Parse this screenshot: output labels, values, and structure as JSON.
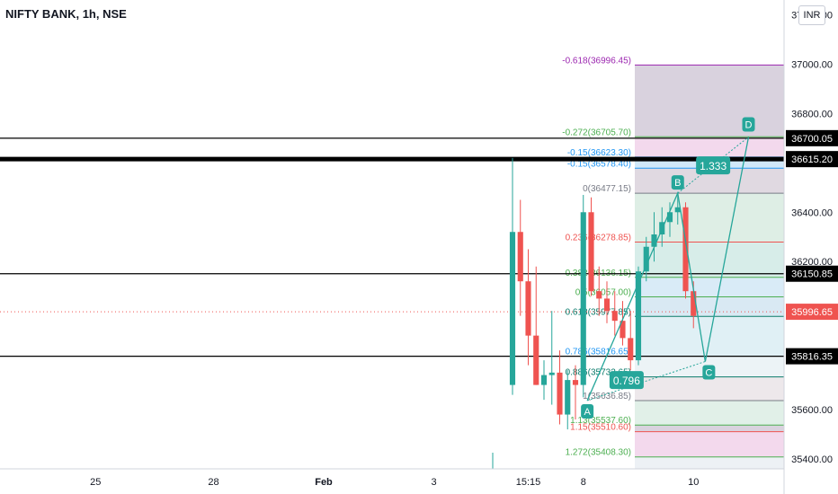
{
  "header": {
    "title": "NIFTY BANK, 1h, NSE",
    "currency": "INR"
  },
  "colors": {
    "up": "#26a69a",
    "down": "#ef5350",
    "fib_purple": "#9c27b0",
    "fib_red": "#ef5350",
    "fib_green": "#4caf50",
    "fib_blue": "#2196f3",
    "fib_gray": "#787b86",
    "pattern": "#26a69a",
    "hline": "#000000",
    "last_price": "#ef5350"
  },
  "chart_data": {
    "type": "candlestick",
    "ylim": [
      35360,
      37260
    ],
    "y_ticks": [
      {
        "value": 37200,
        "label": "37200.00"
      },
      {
        "value": 37000,
        "label": "37000.00"
      },
      {
        "value": 36800,
        "label": "36800.00"
      },
      {
        "value": 36400,
        "label": "36400.00"
      },
      {
        "value": 36200,
        "label": "36200.00"
      },
      {
        "value": 35600,
        "label": "35600.00"
      },
      {
        "value": 35400,
        "label": "35400.00"
      }
    ],
    "x_ticks": [
      {
        "bar": -53,
        "label": "25"
      },
      {
        "bar": -38,
        "label": "28"
      },
      {
        "bar": -24,
        "label": "Feb"
      },
      {
        "bar": -10,
        "label": "3"
      },
      {
        "bar": 2,
        "label": "15:15"
      },
      {
        "bar": 9,
        "label": "8"
      },
      {
        "bar": 23,
        "label": "10"
      }
    ],
    "candles": [
      {
        "o": 35700,
        "h": 36620,
        "l": 35660,
        "c": 36320
      },
      {
        "o": 36320,
        "h": 36450,
        "l": 35980,
        "c": 36120
      },
      {
        "o": 36120,
        "h": 36250,
        "l": 35780,
        "c": 35900
      },
      {
        "o": 35900,
        "h": 36180,
        "l": 35700,
        "c": 35700
      },
      {
        "o": 35700,
        "h": 35800,
        "l": 35640,
        "c": 35740
      },
      {
        "o": 35740,
        "h": 36000,
        "l": 35620,
        "c": 35750
      },
      {
        "o": 35750,
        "h": 35840,
        "l": 35540,
        "c": 35580
      },
      {
        "o": 35580,
        "h": 35760,
        "l": 35520,
        "c": 35720
      },
      {
        "o": 35720,
        "h": 35780,
        "l": 35560,
        "c": 35700
      },
      {
        "o": 35700,
        "h": 36470,
        "l": 35650,
        "c": 36400
      },
      {
        "o": 36400,
        "h": 36460,
        "l": 36060,
        "c": 36080
      },
      {
        "o": 36080,
        "h": 36180,
        "l": 35980,
        "c": 36050
      },
      {
        "o": 36050,
        "h": 36120,
        "l": 35950,
        "c": 36000
      },
      {
        "o": 36000,
        "h": 36080,
        "l": 35900,
        "c": 35960
      },
      {
        "o": 35960,
        "h": 36040,
        "l": 35860,
        "c": 35890
      },
      {
        "o": 35890,
        "h": 36000,
        "l": 35760,
        "c": 35800
      },
      {
        "o": 35800,
        "h": 36180,
        "l": 35780,
        "c": 36160
      },
      {
        "o": 36160,
        "h": 36300,
        "l": 36120,
        "c": 36260
      },
      {
        "o": 36260,
        "h": 36400,
        "l": 36200,
        "c": 36310
      },
      {
        "o": 36310,
        "h": 36420,
        "l": 36260,
        "c": 36360
      },
      {
        "o": 36360,
        "h": 36440,
        "l": 36300,
        "c": 36400
      },
      {
        "o": 36400,
        "h": 36480,
        "l": 36350,
        "c": 36420
      },
      {
        "o": 36420,
        "h": 36440,
        "l": 36050,
        "c": 36080
      },
      {
        "o": 36080,
        "h": 36120,
        "l": 35930,
        "c": 35980
      }
    ],
    "fib_levels": [
      {
        "value": 36996.45,
        "label": "-0.618(36996.45)",
        "color": "#9c27b0"
      },
      {
        "value": 36705.7,
        "label": "-0.272(36705.70)",
        "color": "#4caf50"
      },
      {
        "value": 36623.3,
        "label": "-0.15(36623.30)",
        "color": "#2196f3"
      },
      {
        "value": 36578.4,
        "label": "-0.15(36578.40)",
        "color": "#2196f3"
      },
      {
        "value": 36477.15,
        "label": "0(36477.15)",
        "color": "#787b86"
      },
      {
        "value": 36278.85,
        "label": "0.236(36278.85)",
        "color": "#ef5350"
      },
      {
        "value": 36136.15,
        "label": "0.382(36136.15)",
        "color": "#4caf50"
      },
      {
        "value": 36057.0,
        "label": "0.5(36057.00)",
        "color": "#4caf50"
      },
      {
        "value": 35977.85,
        "label": "0.618(35977.85)",
        "color": "#0a7a6a"
      },
      {
        "value": 35816.65,
        "label": "0.786(35816.65)",
        "color": "#2196f3"
      },
      {
        "value": 35732.65,
        "label": "0.886(35732.65)",
        "color": "#0a7a6a"
      },
      {
        "value": 35636.85,
        "label": "1(35636.85)",
        "color": "#787b86"
      },
      {
        "value": 35537.6,
        "label": "1.13(35537.60)",
        "color": "#4caf50"
      },
      {
        "value": 35510.6,
        "label": "1.15(35510.60)",
        "color": "#ef5350"
      },
      {
        "value": 35408.3,
        "label": "1.272(35408.30)",
        "color": "#4caf50"
      }
    ],
    "h_lines": [
      {
        "value": 36700.05,
        "label": "36700.05"
      },
      {
        "value": 36615.2,
        "label": "36615.20"
      },
      {
        "value": 36150.85,
        "label": "36150.85"
      },
      {
        "value": 35816.35,
        "label": "35816.35"
      }
    ],
    "last_price": {
      "value": 35996.65,
      "label": "35996.65"
    },
    "pattern": {
      "points": [
        {
          "name": "A",
          "bar": 9.5,
          "value": 35636.85
        },
        {
          "name": "B",
          "bar": 21,
          "value": 36477.15
        },
        {
          "name": "C",
          "bar": 24.5,
          "value": 35795
        },
        {
          "name": "D",
          "bar": 30,
          "value": 36705
        }
      ],
      "ratios": [
        {
          "label": "1.333",
          "bar": 25.5,
          "value": 36590
        },
        {
          "label": "0.796",
          "bar": 14.5,
          "value": 35720
        }
      ]
    }
  }
}
